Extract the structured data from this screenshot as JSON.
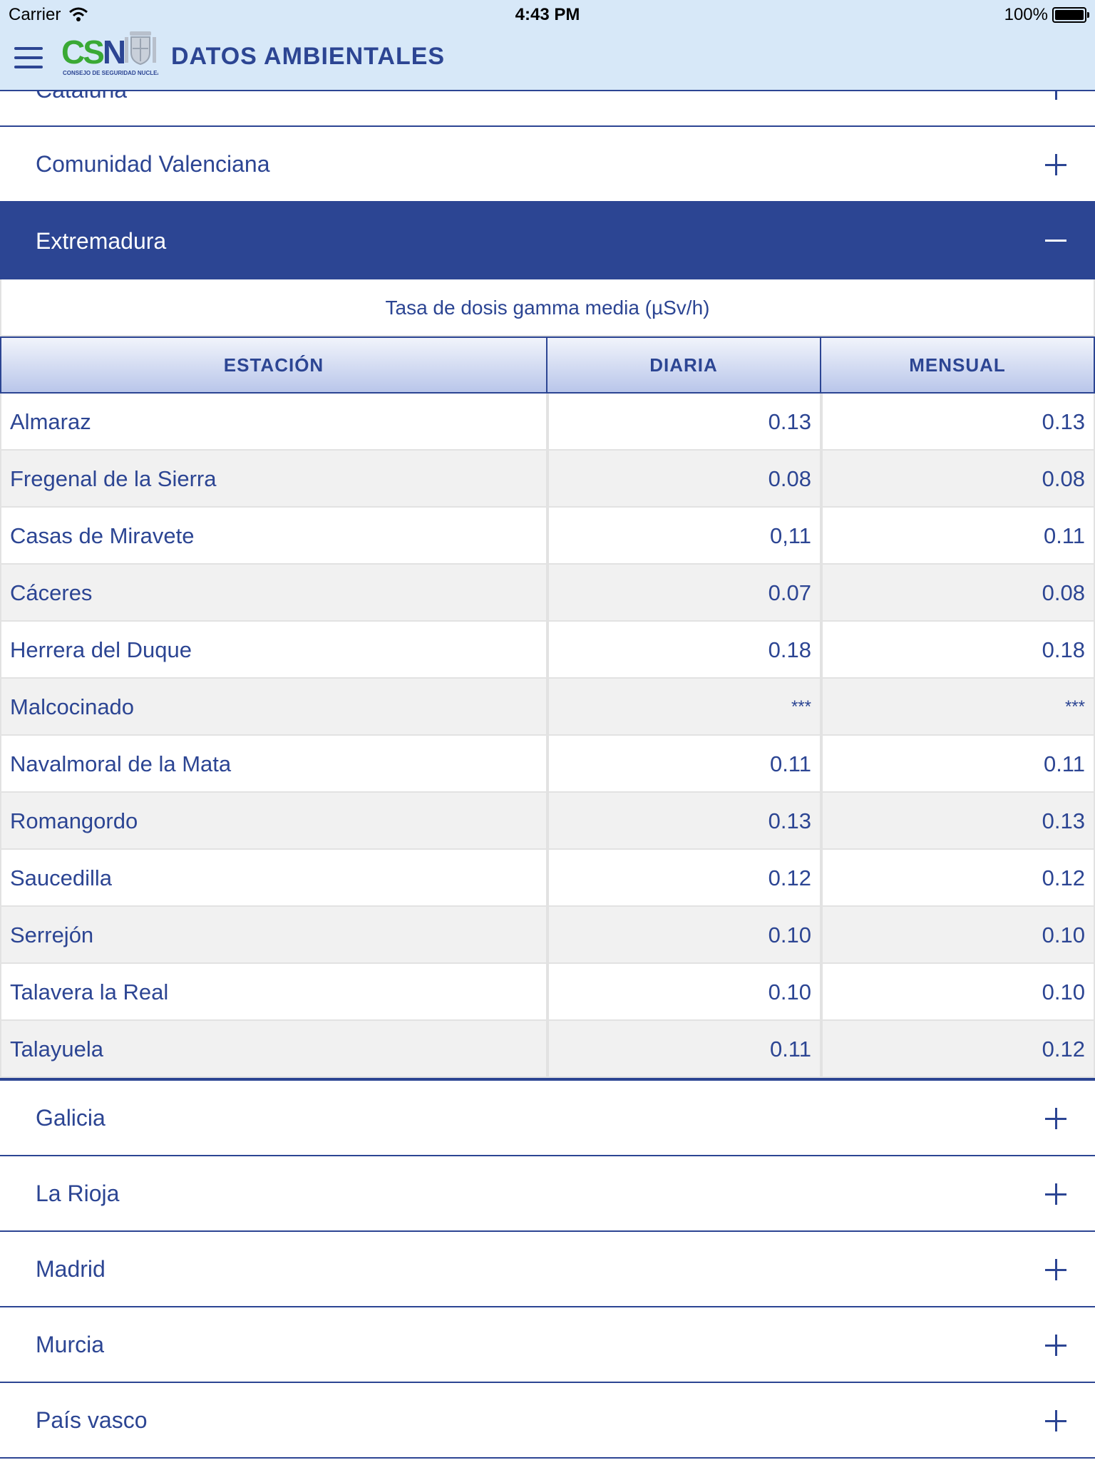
{
  "status_bar": {
    "carrier": "Carrier",
    "time": "4:43 PM",
    "battery": "100%"
  },
  "header": {
    "logo_text_green": "CS",
    "logo_text_blue": "N",
    "logo_sub": "CONSEJO DE SEGURIDAD NUCLEAR",
    "title": "DATOS AMBIENTALES"
  },
  "regions_above": [
    {
      "label": "Cataluña",
      "sign": "plus"
    },
    {
      "label": "Comunidad Valenciana",
      "sign": "plus"
    }
  ],
  "expanded_region": {
    "label": "Extremadura",
    "sign": "minus",
    "caption": "Tasa de dosis gamma media (µSv/h)",
    "columns": [
      "ESTACIÓN",
      "DIARIA",
      "MENSUAL"
    ],
    "rows": [
      {
        "station": "Almaraz",
        "daily": "0.13",
        "monthly": "0.13"
      },
      {
        "station": "Fregenal de la Sierra",
        "daily": "0.08",
        "monthly": "0.08"
      },
      {
        "station": "Casas de Miravete",
        "daily": "0,11",
        "monthly": "0.11"
      },
      {
        "station": "Cáceres",
        "daily": "0.07",
        "monthly": "0.08"
      },
      {
        "station": "Herrera del Duque",
        "daily": "0.18",
        "monthly": "0.18"
      },
      {
        "station": "Malcocinado",
        "daily": "***",
        "monthly": "***"
      },
      {
        "station": "Navalmoral de la Mata",
        "daily": "0.11",
        "monthly": "0.11"
      },
      {
        "station": "Romangordo",
        "daily": "0.13",
        "monthly": "0.13"
      },
      {
        "station": "Saucedilla",
        "daily": "0.12",
        "monthly": "0.12"
      },
      {
        "station": "Serrejón",
        "daily": "0.10",
        "monthly": "0.10"
      },
      {
        "station": "Talavera la Real",
        "daily": "0.10",
        "monthly": "0.10"
      },
      {
        "station": "Talayuela",
        "daily": "0.11",
        "monthly": "0.12"
      }
    ]
  },
  "regions_below": [
    {
      "label": "Galicia",
      "sign": "plus"
    },
    {
      "label": "La Rioja",
      "sign": "plus"
    },
    {
      "label": "Madrid",
      "sign": "plus"
    },
    {
      "label": "Murcia",
      "sign": "plus"
    },
    {
      "label": "País vasco",
      "sign": "plus"
    }
  ],
  "colors": {
    "brand_blue": "#2c4593",
    "header_bg": "#d7e8f8",
    "logo_green": "#3aa935",
    "row_alt": "#f1f1f1"
  }
}
